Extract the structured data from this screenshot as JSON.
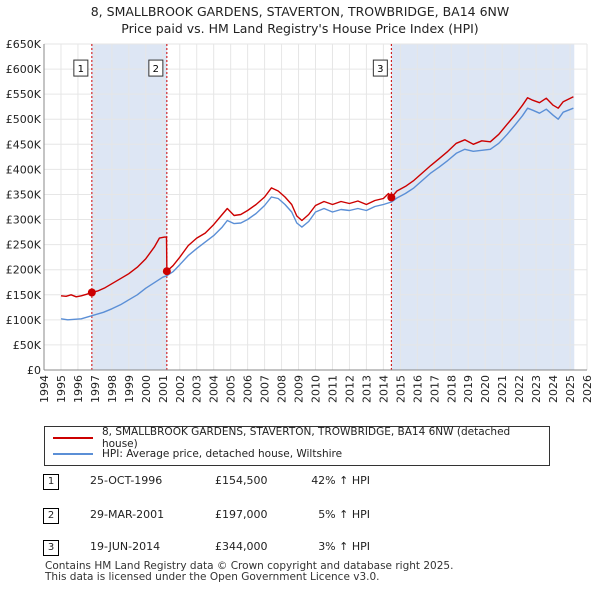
{
  "title_line1": "8, SMALLBROOK GARDENS, STAVERTON, TROWBRIDGE, BA14 6NW",
  "title_line2": "Price paid vs. HM Land Registry's House Price Index (HPI)",
  "colors": {
    "property": "#cc0000",
    "hpi": "#5b8fd6",
    "shade": "#dde6f4",
    "grid": "#e6e6e6",
    "marker": "#cc0000"
  },
  "legend": {
    "property": "8, SMALLBROOK GARDENS, STAVERTON, TROWBRIDGE, BA14 6NW (detached house)",
    "hpi": "HPI: Average price, detached house, Wiltshire"
  },
  "sales": [
    {
      "id": "1",
      "date": "25-OCT-1996",
      "price": "£154,500",
      "hpi": "42% ↑ HPI"
    },
    {
      "id": "2",
      "date": "29-MAR-2001",
      "price": "£197,000",
      "hpi": "5% ↑ HPI"
    },
    {
      "id": "3",
      "date": "19-JUN-2014",
      "price": "£344,000",
      "hpi": "3% ↑ HPI"
    }
  ],
  "footer_line1": "Contains HM Land Registry data © Crown copyright and database right 2025.",
  "footer_line2": "This data is licensed under the Open Government Licence v3.0.",
  "chart_data": {
    "type": "line",
    "xlabel": "",
    "ylabel": "",
    "xlim": [
      1994,
      2026
    ],
    "ylim": [
      0,
      650000
    ],
    "y_ticks": [
      0,
      50000,
      100000,
      150000,
      200000,
      250000,
      300000,
      350000,
      400000,
      450000,
      500000,
      550000,
      600000,
      650000
    ],
    "y_tick_labels": [
      "£0",
      "£50K",
      "£100K",
      "£150K",
      "£200K",
      "£250K",
      "£300K",
      "£350K",
      "£400K",
      "£450K",
      "£500K",
      "£550K",
      "£600K",
      "£650K"
    ],
    "x_ticks": [
      1994,
      1995,
      1996,
      1997,
      1998,
      1999,
      2000,
      2001,
      2002,
      2003,
      2004,
      2005,
      2006,
      2007,
      2008,
      2009,
      2010,
      2011,
      2012,
      2013,
      2014,
      2015,
      2016,
      2017,
      2018,
      2019,
      2020,
      2021,
      2022,
      2023,
      2024,
      2025,
      2026
    ],
    "shaded_ranges": [
      [
        1996.8,
        2001.25
      ],
      [
        2014.47,
        2025.25
      ]
    ],
    "sale_markers": [
      {
        "label": "1",
        "x": 1996.82,
        "y": 154500
      },
      {
        "label": "2",
        "x": 2001.24,
        "y": 197000
      },
      {
        "label": "3",
        "x": 2014.47,
        "y": 344000
      }
    ],
    "series": [
      {
        "name": "8, SMALLBROOK GARDENS, STAVERTON, TROWBRIDGE, BA14 6NW (detached house)",
        "points": [
          [
            1995.0,
            148000
          ],
          [
            1995.3,
            147000
          ],
          [
            1995.6,
            150000
          ],
          [
            1995.9,
            146000
          ],
          [
            1996.2,
            148000
          ],
          [
            1996.5,
            151000
          ],
          [
            1996.82,
            154500
          ],
          [
            1997.2,
            158000
          ],
          [
            1997.6,
            164000
          ],
          [
            1998.0,
            172000
          ],
          [
            1998.5,
            182000
          ],
          [
            1999.0,
            192000
          ],
          [
            1999.5,
            205000
          ],
          [
            2000.0,
            222000
          ],
          [
            2000.5,
            245000
          ],
          [
            2000.8,
            263000
          ],
          [
            2001.1,
            265000
          ],
          [
            2001.22,
            265000
          ],
          [
            2001.24,
            197000
          ],
          [
            2001.6,
            208000
          ],
          [
            2002.0,
            225000
          ],
          [
            2002.5,
            248000
          ],
          [
            2003.0,
            263000
          ],
          [
            2003.5,
            273000
          ],
          [
            2004.0,
            290000
          ],
          [
            2004.5,
            310000
          ],
          [
            2004.8,
            322000
          ],
          [
            2005.2,
            308000
          ],
          [
            2005.6,
            310000
          ],
          [
            2006.0,
            318000
          ],
          [
            2006.5,
            330000
          ],
          [
            2007.0,
            345000
          ],
          [
            2007.4,
            363000
          ],
          [
            2007.8,
            357000
          ],
          [
            2008.2,
            345000
          ],
          [
            2008.6,
            330000
          ],
          [
            2008.9,
            307000
          ],
          [
            2009.2,
            298000
          ],
          [
            2009.6,
            310000
          ],
          [
            2010.0,
            328000
          ],
          [
            2010.5,
            336000
          ],
          [
            2011.0,
            330000
          ],
          [
            2011.5,
            336000
          ],
          [
            2012.0,
            332000
          ],
          [
            2012.5,
            337000
          ],
          [
            2013.0,
            330000
          ],
          [
            2013.5,
            338000
          ],
          [
            2014.0,
            342000
          ],
          [
            2014.3,
            352000
          ],
          [
            2014.47,
            344000
          ],
          [
            2014.8,
            357000
          ],
          [
            2015.3,
            366000
          ],
          [
            2015.8,
            378000
          ],
          [
            2016.3,
            393000
          ],
          [
            2016.8,
            408000
          ],
          [
            2017.3,
            422000
          ],
          [
            2017.8,
            436000
          ],
          [
            2018.3,
            452000
          ],
          [
            2018.8,
            459000
          ],
          [
            2019.3,
            450000
          ],
          [
            2019.8,
            457000
          ],
          [
            2020.3,
            455000
          ],
          [
            2020.8,
            470000
          ],
          [
            2021.3,
            490000
          ],
          [
            2021.8,
            510000
          ],
          [
            2022.2,
            528000
          ],
          [
            2022.5,
            543000
          ],
          [
            2022.8,
            538000
          ],
          [
            2023.2,
            533000
          ],
          [
            2023.6,
            542000
          ],
          [
            2024.0,
            528000
          ],
          [
            2024.3,
            522000
          ],
          [
            2024.6,
            535000
          ],
          [
            2024.9,
            540000
          ],
          [
            2025.2,
            545000
          ]
        ]
      },
      {
        "name": "HPI: Average price, detached house, Wiltshire",
        "points": [
          [
            1995.0,
            102000
          ],
          [
            1995.4,
            100000
          ],
          [
            1995.8,
            101000
          ],
          [
            1996.2,
            102000
          ],
          [
            1996.6,
            106000
          ],
          [
            1997.0,
            110000
          ],
          [
            1997.5,
            115000
          ],
          [
            1998.0,
            122000
          ],
          [
            1998.5,
            130000
          ],
          [
            1999.0,
            140000
          ],
          [
            1999.5,
            150000
          ],
          [
            2000.0,
            163000
          ],
          [
            2000.5,
            174000
          ],
          [
            2001.0,
            185000
          ],
          [
            2001.24,
            188000
          ],
          [
            2001.6,
            196000
          ],
          [
            2002.0,
            210000
          ],
          [
            2002.5,
            228000
          ],
          [
            2003.0,
            242000
          ],
          [
            2003.5,
            255000
          ],
          [
            2004.0,
            268000
          ],
          [
            2004.5,
            285000
          ],
          [
            2004.8,
            298000
          ],
          [
            2005.2,
            292000
          ],
          [
            2005.6,
            293000
          ],
          [
            2006.0,
            300000
          ],
          [
            2006.5,
            312000
          ],
          [
            2007.0,
            328000
          ],
          [
            2007.4,
            345000
          ],
          [
            2007.8,
            342000
          ],
          [
            2008.2,
            330000
          ],
          [
            2008.6,
            315000
          ],
          [
            2008.9,
            293000
          ],
          [
            2009.2,
            285000
          ],
          [
            2009.6,
            296000
          ],
          [
            2010.0,
            315000
          ],
          [
            2010.5,
            322000
          ],
          [
            2011.0,
            315000
          ],
          [
            2011.5,
            320000
          ],
          [
            2012.0,
            318000
          ],
          [
            2012.5,
            322000
          ],
          [
            2013.0,
            318000
          ],
          [
            2013.5,
            326000
          ],
          [
            2014.0,
            330000
          ],
          [
            2014.47,
            335000
          ],
          [
            2014.8,
            343000
          ],
          [
            2015.3,
            352000
          ],
          [
            2015.8,
            363000
          ],
          [
            2016.3,
            378000
          ],
          [
            2016.8,
            393000
          ],
          [
            2017.3,
            405000
          ],
          [
            2017.8,
            418000
          ],
          [
            2018.3,
            432000
          ],
          [
            2018.8,
            440000
          ],
          [
            2019.3,
            436000
          ],
          [
            2019.8,
            438000
          ],
          [
            2020.3,
            440000
          ],
          [
            2020.8,
            452000
          ],
          [
            2021.3,
            470000
          ],
          [
            2021.8,
            490000
          ],
          [
            2022.2,
            507000
          ],
          [
            2022.5,
            522000
          ],
          [
            2022.8,
            518000
          ],
          [
            2023.2,
            512000
          ],
          [
            2023.6,
            520000
          ],
          [
            2024.0,
            508000
          ],
          [
            2024.3,
            500000
          ],
          [
            2024.6,
            514000
          ],
          [
            2024.9,
            518000
          ],
          [
            2025.2,
            522000
          ]
        ]
      }
    ]
  }
}
